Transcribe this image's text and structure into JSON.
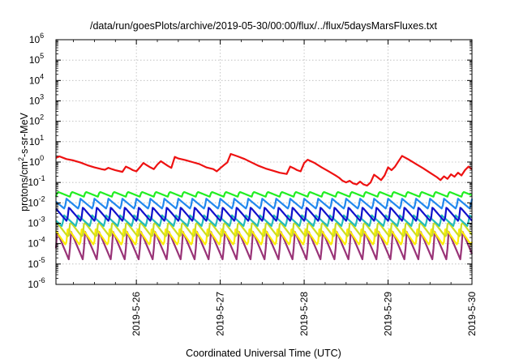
{
  "chart_data": {
    "type": "line",
    "title": "/data/run/goesPlots/archive/2019-05-30/00:00/flux/../flux/5daysMarsFluxes.txt",
    "xlabel": "Coordinated Universal Time (UTC)",
    "ylabel": {
      "prefix": "protons/cm",
      "sup": "2",
      "suffix": "-s-sr-MeV"
    },
    "yscale": "log",
    "ylim": [
      1e-06,
      1000000.0
    ],
    "xlim": [
      "2019-05-25T01:00",
      "2019-05-30T00:00"
    ],
    "grid": true,
    "yticks": [
      {
        "value": 1e-06,
        "base": "10",
        "exp": "-6"
      },
      {
        "value": 1e-05,
        "base": "10",
        "exp": "-5"
      },
      {
        "value": 0.0001,
        "base": "10",
        "exp": "-4"
      },
      {
        "value": 0.001,
        "base": "10",
        "exp": "-3"
      },
      {
        "value": 0.01,
        "base": "10",
        "exp": "-2"
      },
      {
        "value": 0.1,
        "base": "10",
        "exp": "-1"
      },
      {
        "value": 1,
        "base": "10",
        "exp": "0"
      },
      {
        "value": 10,
        "base": "10",
        "exp": "1"
      },
      {
        "value": 100,
        "base": "10",
        "exp": "2"
      },
      {
        "value": 1000,
        "base": "10",
        "exp": "3"
      },
      {
        "value": 10000,
        "base": "10",
        "exp": "4"
      },
      {
        "value": 100000,
        "base": "10",
        "exp": "5"
      },
      {
        "value": 1000000,
        "base": "10",
        "exp": "6"
      }
    ],
    "xticks": [
      {
        "time": "2019-05-26T00:00",
        "label": "2019-5-26"
      },
      {
        "time": "2019-05-27T00:00",
        "label": "2019-5-27"
      },
      {
        "time": "2019-05-28T00:00",
        "label": "2019-5-28"
      },
      {
        "time": "2019-05-29T00:00",
        "label": "2019-5-29"
      },
      {
        "time": "2019-05-30T00:00",
        "label": "2019-5-30"
      }
    ],
    "series": [
      {
        "color": "#ee1111",
        "points": [
          [
            "2019-05-25T01:00",
            1.6
          ],
          [
            "2019-05-25T02:00",
            1.9
          ],
          [
            "2019-05-25T04:00",
            1.4
          ],
          [
            "2019-05-25T06:00",
            1.2
          ],
          [
            "2019-05-25T08:00",
            0.95
          ],
          [
            "2019-05-25T10:00",
            0.7
          ],
          [
            "2019-05-25T12:00",
            0.55
          ],
          [
            "2019-05-25T14:00",
            0.45
          ],
          [
            "2019-05-25T15:00",
            0.42
          ],
          [
            "2019-05-25T16:00",
            0.52
          ],
          [
            "2019-05-25T17:00",
            0.45
          ],
          [
            "2019-05-25T18:00",
            0.4
          ],
          [
            "2019-05-25T20:00",
            0.33
          ],
          [
            "2019-05-25T21:00",
            0.6
          ],
          [
            "2019-05-25T22:00",
            0.5
          ],
          [
            "2019-05-25T23:00",
            0.4
          ],
          [
            "2019-05-26T00:00",
            0.35
          ],
          [
            "2019-05-26T01:00",
            0.55
          ],
          [
            "2019-05-26T02:00",
            0.9
          ],
          [
            "2019-05-26T03:00",
            0.7
          ],
          [
            "2019-05-26T04:00",
            0.55
          ],
          [
            "2019-05-26T05:00",
            0.45
          ],
          [
            "2019-05-26T06:00",
            0.75
          ],
          [
            "2019-05-26T07:00",
            1.1
          ],
          [
            "2019-05-26T08:00",
            0.85
          ],
          [
            "2019-05-26T09:00",
            0.65
          ],
          [
            "2019-05-26T10:00",
            0.52
          ],
          [
            "2019-05-26T11:00",
            1.8
          ],
          [
            "2019-05-26T12:00",
            1.5
          ],
          [
            "2019-05-26T14:00",
            1.25
          ],
          [
            "2019-05-26T16:00",
            1.0
          ],
          [
            "2019-05-26T18:00",
            0.8
          ],
          [
            "2019-05-26T20:00",
            0.55
          ],
          [
            "2019-05-26T22:00",
            0.45
          ],
          [
            "2019-05-26T23:00",
            0.35
          ],
          [
            "2019-05-27T00:00",
            0.5
          ],
          [
            "2019-05-27T01:00",
            0.7
          ],
          [
            "2019-05-27T02:00",
            0.95
          ],
          [
            "2019-05-27T03:00",
            2.5
          ],
          [
            "2019-05-27T05:00",
            1.9
          ],
          [
            "2019-05-27T07:00",
            1.4
          ],
          [
            "2019-05-27T09:00",
            0.95
          ],
          [
            "2019-05-27T11:00",
            0.65
          ],
          [
            "2019-05-27T13:00",
            0.48
          ],
          [
            "2019-05-27T15:00",
            0.38
          ],
          [
            "2019-05-27T17:00",
            0.3
          ],
          [
            "2019-05-27T19:00",
            0.26
          ],
          [
            "2019-05-27T20:00",
            0.6
          ],
          [
            "2019-05-27T21:00",
            0.5
          ],
          [
            "2019-05-27T22:00",
            0.4
          ],
          [
            "2019-05-27T23:00",
            0.35
          ],
          [
            "2019-05-28T00:00",
            0.9
          ],
          [
            "2019-05-28T01:00",
            1.3
          ],
          [
            "2019-05-28T03:00",
            0.9
          ],
          [
            "2019-05-28T05:00",
            0.55
          ],
          [
            "2019-05-28T07:00",
            0.35
          ],
          [
            "2019-05-28T09:00",
            0.22
          ],
          [
            "2019-05-28T10:00",
            0.17
          ],
          [
            "2019-05-28T11:00",
            0.12
          ],
          [
            "2019-05-28T12:00",
            0.1
          ],
          [
            "2019-05-28T13:00",
            0.12
          ],
          [
            "2019-05-28T14:00",
            0.09
          ],
          [
            "2019-05-28T15:00",
            0.08
          ],
          [
            "2019-05-28T16:00",
            0.11
          ],
          [
            "2019-05-28T17:00",
            0.08
          ],
          [
            "2019-05-28T18:00",
            0.07
          ],
          [
            "2019-05-28T19:00",
            0.1
          ],
          [
            "2019-05-28T20:00",
            0.24
          ],
          [
            "2019-05-28T21:00",
            0.18
          ],
          [
            "2019-05-28T22:00",
            0.13
          ],
          [
            "2019-05-28T23:00",
            0.22
          ],
          [
            "2019-05-29T00:00",
            0.55
          ],
          [
            "2019-05-29T01:00",
            0.4
          ],
          [
            "2019-05-29T02:00",
            0.6
          ],
          [
            "2019-05-29T03:00",
            1.1
          ],
          [
            "2019-05-29T04:00",
            2.0
          ],
          [
            "2019-05-29T06:00",
            1.3
          ],
          [
            "2019-05-29T08:00",
            0.8
          ],
          [
            "2019-05-29T10:00",
            0.5
          ],
          [
            "2019-05-29T12:00",
            0.3
          ],
          [
            "2019-05-29T14:00",
            0.18
          ],
          [
            "2019-05-29T15:00",
            0.13
          ],
          [
            "2019-05-29T16:00",
            0.2
          ],
          [
            "2019-05-29T17:00",
            0.15
          ],
          [
            "2019-05-29T18:00",
            0.25
          ],
          [
            "2019-05-29T19:00",
            0.19
          ],
          [
            "2019-05-29T20:00",
            0.3
          ],
          [
            "2019-05-29T21:00",
            0.22
          ],
          [
            "2019-05-29T22:00",
            0.4
          ],
          [
            "2019-05-29T23:00",
            0.6
          ],
          [
            "2019-05-30T00:00",
            0.45
          ]
        ]
      },
      {
        "color": "#22ee22",
        "sawtooth": {
          "period_hours": 4,
          "phase_hours": 0,
          "high": 0.035,
          "low": 0.02
        }
      },
      {
        "color": "#2288ee",
        "sawtooth": {
          "period_hours": 4,
          "phase_hours": 1.5,
          "high": 0.016,
          "low": 0.005
        }
      },
      {
        "color": "#1111cc",
        "sawtooth": {
          "period_hours": 4,
          "phase_hours": 0.8,
          "high": 0.006,
          "low": 0.0012
        }
      },
      {
        "color": "#22bbbb",
        "sawtooth": {
          "period_hours": 4,
          "phase_hours": 2.2,
          "high": 0.0025,
          "low": 0.0007
        }
      },
      {
        "color": "#ccdd22",
        "sawtooth": {
          "period_hours": 4,
          "phase_hours": 0.4,
          "high": 0.0012,
          "low": 0.0002
        }
      },
      {
        "color": "#ffee00",
        "sawtooth": {
          "period_hours": 4,
          "phase_hours": 1.1,
          "high": 0.0006,
          "low": 8e-05
        }
      },
      {
        "color": "#993377",
        "sawtooth": {
          "period_hours": 4,
          "phase_hours": 0.2,
          "high": 0.0004,
          "low": 1.5e-05
        }
      }
    ]
  }
}
